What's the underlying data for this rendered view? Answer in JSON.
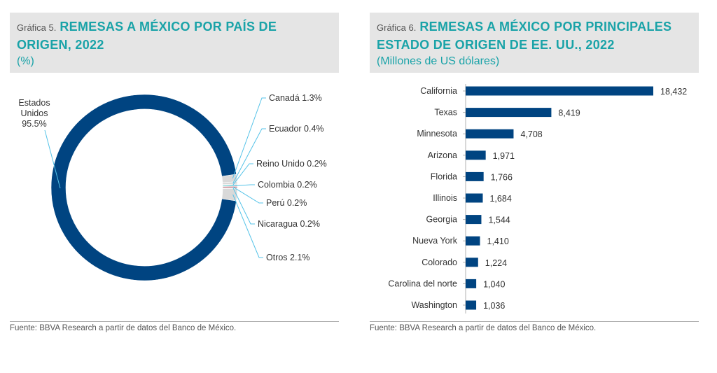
{
  "chart_data": [
    {
      "type": "pie",
      "title_prefix": "Gráfica 5.",
      "title": "REMESAS A MÉXICO POR PAÍS DE ORIGEN, 2022",
      "title_lines": [
        "REMESAS A MÉXICO POR PAÍS DE",
        "ORIGEN, 2022"
      ],
      "subtitle": "(%)",
      "source": "Fuente: BBVA Research a partir de datos del Banco de México.",
      "slices": [
        {
          "label": "Estados Unidos",
          "label_lines": [
            "Estados",
            "Unidos",
            "95.5%"
          ],
          "value": 95.5,
          "color": "#004481"
        },
        {
          "label": "Canadá",
          "label_text": "Canadá 1.3%",
          "value": 1.3,
          "color": "#d9d9d9"
        },
        {
          "label": "Ecuador",
          "label_text": "Ecuador 0.4%",
          "value": 0.4,
          "color": "#d9d9d9"
        },
        {
          "label": "Reino Unido",
          "label_text": "Reino Unido 0.2%",
          "value": 0.2,
          "color": "#d9d9d9"
        },
        {
          "label": "Colombia",
          "label_text": "Colombia 0.2%",
          "value": 0.2,
          "color": "#2dcccd"
        },
        {
          "label": "Perú",
          "label_text": "Perú 0.2%",
          "value": 0.2,
          "color": "#b5394d"
        },
        {
          "label": "Nicaragua",
          "label_text": "Nicaragua 0.2%",
          "value": 0.2,
          "color": "#d9d9d9"
        },
        {
          "label": "Otros",
          "label_text": "Otros 2.1%",
          "value": 2.1,
          "color": "#d9d9d9"
        }
      ]
    },
    {
      "type": "bar",
      "orientation": "horizontal",
      "title_prefix": "Gráfica 6.",
      "title": "REMESAS A MÉXICO POR PRINCIPALES ESTADO DE ORIGEN DE EE. UU., 2022",
      "title_lines": [
        "REMESAS A MÉXICO POR PRINCIPALES",
        "ESTADO DE ORIGEN DE EE. UU., 2022"
      ],
      "subtitle": "(Millones de US dólares)",
      "source": "Fuente: BBVA Research a partir de datos del Banco de México.",
      "categories": [
        "California",
        "Texas",
        "Minnesota",
        "Arizona",
        "Florida",
        "Illinois",
        "Georgia",
        "Nueva York",
        "Colorado",
        "Carolina del norte",
        "Washington"
      ],
      "values": [
        18432,
        8419,
        4708,
        1971,
        1766,
        1684,
        1544,
        1410,
        1224,
        1040,
        1036
      ],
      "value_labels": [
        "18,432",
        "8,419",
        "4,708",
        "1,971",
        "1,766",
        "1,684",
        "1,544",
        "1,410",
        "1,224",
        "1,040",
        "1,036"
      ],
      "bar_color": "#004481",
      "xlim": [
        0,
        18432
      ]
    }
  ]
}
